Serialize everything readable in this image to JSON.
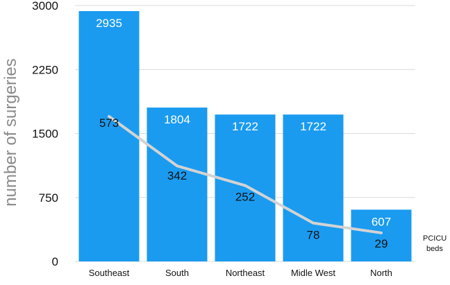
{
  "chart_data": {
    "type": "bar",
    "categories": [
      "Southeast",
      "South",
      "Northeast",
      "Midle West",
      "North"
    ],
    "series": [
      {
        "values": [
          2935,
          1804,
          1722,
          1722,
          607
        ],
        "color": "#1a9bf0"
      },
      {
        "name": "PCICU beds",
        "type": "line",
        "values": [
          573,
          342,
          252,
          78,
          29
        ],
        "color": "#d3d3d3"
      }
    ],
    "line_plot_values": [
      1700,
      1120,
      890,
      450,
      335
    ],
    "ylabel": "number of surgeries",
    "ylim": [
      0,
      3000
    ],
    "yticks": [
      0,
      750,
      1500,
      2250,
      3000
    ],
    "legend": {
      "label_line1": "PCICU",
      "label_line2": "beds",
      "placement": "right"
    },
    "grid": true
  }
}
